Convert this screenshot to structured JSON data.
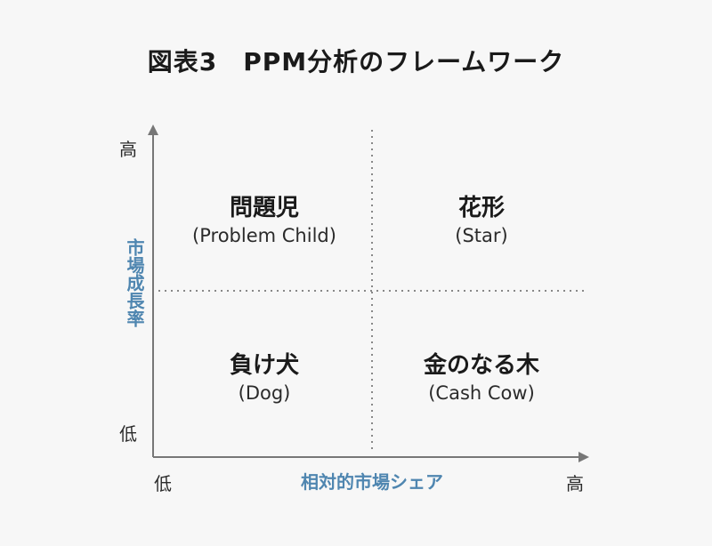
{
  "title": "図表3　PPM分析のフレームワーク",
  "y_axis": {
    "label": "市場成長率",
    "high": "高",
    "low": "低"
  },
  "x_axis": {
    "label": "相対的市場シェア",
    "low": "低",
    "high": "高"
  },
  "quadrants": {
    "top_left": {
      "jp": "問題児",
      "en": "(Problem Child)"
    },
    "top_right": {
      "jp": "花形",
      "en": "(Star)"
    },
    "bottom_left": {
      "jp": "負け犬",
      "en": "(Dog)"
    },
    "bottom_right": {
      "jp": "金のなる木",
      "en": "(Cash Cow)"
    }
  },
  "colors": {
    "axis_label": "#4f86b0",
    "axis_line": "#777777",
    "divider": "#888888",
    "background": "#f7f7f7"
  }
}
